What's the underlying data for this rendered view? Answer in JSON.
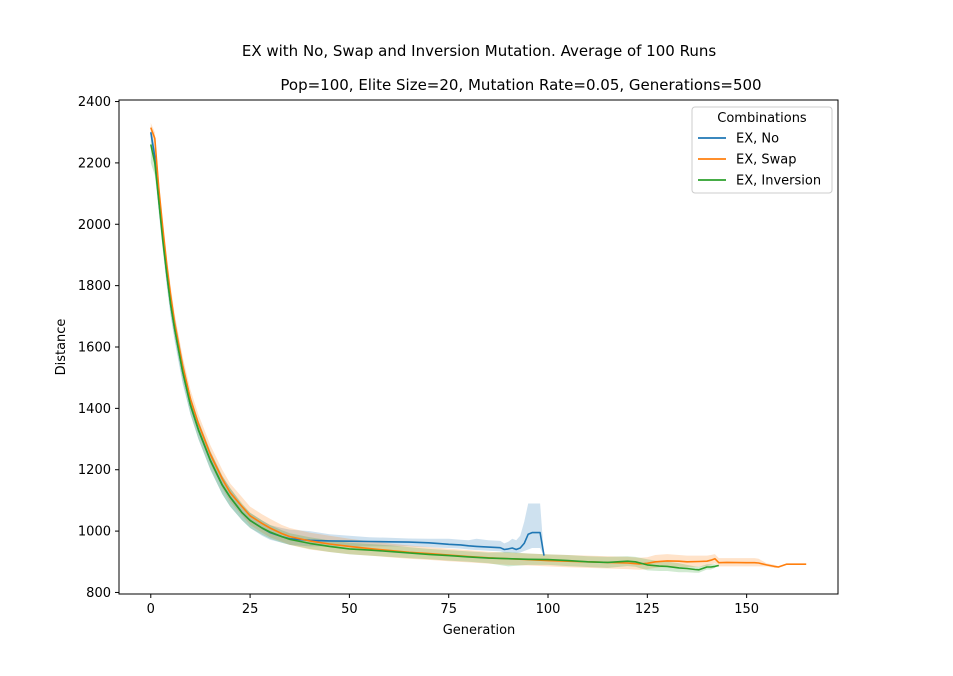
{
  "chart_data": {
    "type": "line",
    "title": "EX with No, Swap and Inversion Mutation. Average of 100 Runs",
    "subtitle": "Pop=100, Elite Size=20, Mutation Rate=0.05, Generations=500",
    "xlabel": "Generation",
    "ylabel": "Distance",
    "xlim": [
      -8,
      173
    ],
    "ylim": [
      795,
      2405
    ],
    "xticks": [
      0,
      25,
      50,
      75,
      100,
      125,
      150
    ],
    "yticks": [
      800,
      1000,
      1200,
      1400,
      1600,
      1800,
      2000,
      2200,
      2400
    ],
    "grid": false,
    "legend": {
      "title": "Combinations",
      "placement": "top-right"
    },
    "series": [
      {
        "name": "EX, No",
        "color": "#1f77b4",
        "x": [
          0,
          1,
          2,
          3,
          4,
          5,
          6,
          8,
          10,
          12,
          15,
          18,
          20,
          23,
          25,
          28,
          30,
          33,
          35,
          40,
          45,
          50,
          55,
          60,
          65,
          70,
          73,
          75,
          78,
          80,
          82,
          85,
          88,
          89,
          90,
          91,
          92,
          93,
          94,
          95,
          96,
          97,
          98,
          99
        ],
        "y": [
          2300,
          2220,
          2080,
          1960,
          1840,
          1740,
          1660,
          1520,
          1410,
          1330,
          1230,
          1150,
          1110,
          1060,
          1035,
          1010,
          995,
          982,
          975,
          970,
          968,
          967,
          966,
          965,
          964,
          962,
          959,
          957,
          955,
          952,
          950,
          948,
          946,
          940,
          942,
          945,
          940,
          945,
          960,
          990,
          995,
          995,
          995,
          920
        ],
        "band_low": [
          2280,
          2190,
          2040,
          1920,
          1800,
          1700,
          1620,
          1480,
          1380,
          1300,
          1200,
          1120,
          1080,
          1035,
          1010,
          985,
          972,
          962,
          955,
          950,
          950,
          950,
          950,
          950,
          950,
          948,
          946,
          945,
          943,
          940,
          938,
          936,
          934,
          930,
          930,
          930,
          928,
          930,
          935,
          940,
          945,
          945,
          945,
          920
        ],
        "band_high": [
          2320,
          2250,
          2120,
          2000,
          1880,
          1780,
          1700,
          1560,
          1440,
          1360,
          1260,
          1180,
          1140,
          1085,
          1060,
          1035,
          1020,
          1010,
          1005,
          1000,
          990,
          985,
          980,
          978,
          976,
          975,
          975,
          975,
          972,
          970,
          975,
          970,
          968,
          960,
          965,
          975,
          970,
          985,
          1030,
          1090,
          1090,
          1090,
          1090,
          920
        ]
      },
      {
        "name": "EX, Swap",
        "color": "#ff7f0e",
        "x": [
          0,
          1,
          2,
          3,
          4,
          5,
          6,
          8,
          10,
          12,
          15,
          18,
          20,
          23,
          25,
          28,
          30,
          33,
          35,
          40,
          45,
          50,
          55,
          60,
          65,
          70,
          75,
          80,
          85,
          90,
          95,
          100,
          105,
          110,
          115,
          120,
          123,
          125,
          127,
          130,
          133,
          135,
          138,
          140,
          141,
          142,
          143,
          145,
          150,
          152,
          153,
          155,
          157,
          158,
          160,
          162,
          165
        ],
        "y": [
          2315,
          2280,
          2120,
          1990,
          1870,
          1770,
          1680,
          1540,
          1430,
          1350,
          1250,
          1170,
          1125,
          1080,
          1050,
          1025,
          1010,
          992,
          982,
          968,
          958,
          950,
          943,
          937,
          931,
          927,
          922,
          917,
          913,
          910,
          907,
          904,
          902,
          900,
          898,
          896,
          893,
          895,
          900,
          903,
          902,
          900,
          901,
          902,
          905,
          910,
          897,
          898,
          897,
          897,
          896,
          890,
          885,
          883,
          892,
          892,
          892
        ],
        "band_low": [
          2300,
          2260,
          2090,
          1960,
          1840,
          1740,
          1650,
          1510,
          1400,
          1320,
          1220,
          1140,
          1095,
          1050,
          1020,
          995,
          980,
          965,
          955,
          940,
          932,
          925,
          920,
          915,
          910,
          906,
          902,
          898,
          894,
          890,
          888,
          885,
          882,
          880,
          878,
          876,
          874,
          876,
          880,
          884,
          884,
          882,
          884,
          886,
          890,
          895,
          885,
          885,
          885,
          885,
          885,
          885,
          880,
          880,
          892,
          892,
          892
        ],
        "band_high": [
          2330,
          2300,
          2150,
          2020,
          1900,
          1800,
          1710,
          1570,
          1460,
          1380,
          1280,
          1200,
          1155,
          1110,
          1080,
          1055,
          1040,
          1020,
          1010,
          995,
          985,
          975,
          967,
          960,
          953,
          948,
          943,
          938,
          933,
          930,
          927,
          924,
          922,
          920,
          918,
          916,
          913,
          915,
          922,
          925,
          922,
          920,
          920,
          920,
          922,
          925,
          912,
          912,
          912,
          912,
          910,
          895,
          890,
          886,
          892,
          892,
          892
        ]
      },
      {
        "name": "EX, Inversion",
        "color": "#2ca02c",
        "x": [
          0,
          1,
          2,
          3,
          4,
          5,
          6,
          8,
          10,
          12,
          15,
          18,
          20,
          23,
          25,
          28,
          30,
          33,
          35,
          40,
          45,
          50,
          55,
          60,
          65,
          70,
          75,
          80,
          85,
          90,
          95,
          100,
          105,
          110,
          115,
          120,
          122,
          125,
          128,
          130,
          133,
          135,
          137,
          138,
          140,
          141,
          142,
          143
        ],
        "y": [
          2260,
          2200,
          2080,
          1950,
          1840,
          1740,
          1660,
          1520,
          1410,
          1330,
          1230,
          1150,
          1110,
          1060,
          1035,
          1010,
          997,
          982,
          973,
          960,
          950,
          942,
          938,
          934,
          929,
          924,
          920,
          916,
          912,
          910,
          908,
          907,
          904,
          900,
          898,
          902,
          900,
          890,
          886,
          885,
          880,
          878,
          875,
          874,
          883,
          883,
          885,
          888
        ],
        "band_low": [
          2200,
          2160,
          2050,
          1920,
          1810,
          1710,
          1630,
          1490,
          1380,
          1300,
          1200,
          1120,
          1080,
          1035,
          1010,
          988,
          975,
          962,
          955,
          942,
          932,
          924,
          920,
          916,
          912,
          908,
          904,
          900,
          895,
          885,
          890,
          890,
          886,
          883,
          880,
          886,
          884,
          872,
          870,
          870,
          866,
          866,
          864,
          864,
          875,
          875,
          880,
          888
        ],
        "band_high": [
          2300,
          2240,
          2110,
          1980,
          1870,
          1770,
          1690,
          1550,
          1440,
          1360,
          1260,
          1180,
          1140,
          1090,
          1060,
          1035,
          1020,
          1003,
          993,
          980,
          970,
          962,
          958,
          954,
          948,
          942,
          938,
          934,
          930,
          932,
          927,
          924,
          922,
          918,
          916,
          918,
          916,
          908,
          902,
          900,
          895,
          890,
          885,
          884,
          892,
          892,
          892,
          888
        ]
      }
    ]
  }
}
